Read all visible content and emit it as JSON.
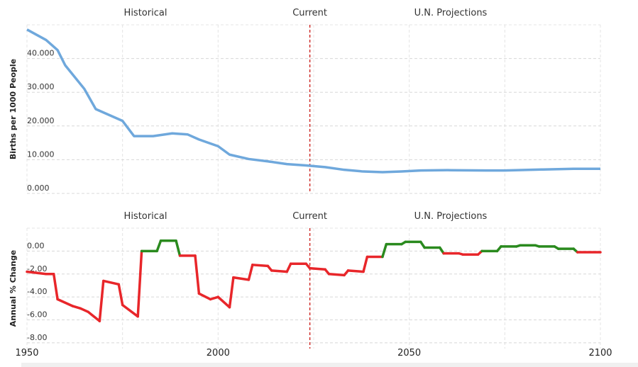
{
  "chart_data": [
    {
      "type": "line",
      "y_label": "Births per 1000 People",
      "annotations": [
        "Historical",
        "Current",
        "U.N. Projections"
      ],
      "current_x": 2024,
      "xlim": [
        1950,
        2100
      ],
      "ylim": [
        0,
        50
      ],
      "yticks": [
        {
          "value": 0,
          "label": "0.000"
        },
        {
          "value": 10,
          "label": "10.000"
        },
        {
          "value": 20,
          "label": "20.000"
        },
        {
          "value": 30,
          "label": "30.000"
        },
        {
          "value": 40,
          "label": "40.000"
        }
      ],
      "x": [
        1950,
        1955,
        1958,
        1960,
        1965,
        1968,
        1972,
        1975,
        1978,
        1983,
        1988,
        1992,
        1995,
        2000,
        2003,
        2008,
        2013,
        2018,
        2023,
        2028,
        2033,
        2038,
        2043,
        2048,
        2053,
        2060,
        2070,
        2075,
        2085,
        2093,
        2100
      ],
      "series": [
        {
          "color": "#6fa8dc",
          "values": [
            48.6,
            45.5,
            42.5,
            38,
            31,
            25,
            23,
            21.5,
            17,
            17,
            17.8,
            17.5,
            16,
            14,
            11.5,
            10.2,
            9.5,
            8.7,
            8.3,
            7.8,
            7,
            6.5,
            6.3,
            6.5,
            6.8,
            6.9,
            6.8,
            6.8,
            7.1,
            7.3,
            7.3
          ]
        }
      ]
    },
    {
      "type": "line",
      "y_label": "Annual % Change",
      "annotations": [
        "Historical",
        "Current",
        "U.N. Projections"
      ],
      "current_x": 2024,
      "xlim": [
        1950,
        2100
      ],
      "xticks": [
        1950,
        2000,
        2050,
        2100
      ],
      "xminor": [
        1975,
        2025,
        2075
      ],
      "ylim": [
        -8.5,
        2
      ],
      "yticks": [
        {
          "value": 0,
          "label": "0.00"
        },
        {
          "value": -2,
          "label": "-2.00"
        },
        {
          "value": -4,
          "label": "-4.00"
        },
        {
          "value": -6,
          "label": "-6.00"
        },
        {
          "value": -8,
          "label": "-8.00"
        }
      ],
      "positive_color": "#2a8a1e",
      "negative_color": "#e8262a",
      "x": [
        1950,
        1955,
        1957,
        1958,
        1962,
        1964,
        1966,
        1969,
        1970,
        1974,
        1975,
        1979,
        1980,
        1984,
        1985,
        1989,
        1990,
        1994,
        1995,
        1998,
        2000,
        2003,
        2004,
        2008,
        2009,
        2013,
        2014,
        2018,
        2019,
        2023,
        2024,
        2028,
        2029,
        2033,
        2034,
        2038,
        2039,
        2043,
        2044,
        2048,
        2049,
        2053,
        2054,
        2058,
        2059,
        2063,
        2064,
        2068,
        2069,
        2073,
        2074,
        2078,
        2079,
        2083,
        2084,
        2088,
        2089,
        2093,
        2094,
        2100
      ],
      "series": [
        {
          "values": [
            -1.8,
            -2.0,
            -2.0,
            -4.2,
            -4.8,
            -5.0,
            -5.3,
            -6.1,
            -2.6,
            -2.9,
            -4.7,
            -5.7,
            0.0,
            0.0,
            0.9,
            0.9,
            -0.4,
            -0.4,
            -3.7,
            -4.2,
            -4.0,
            -4.9,
            -2.3,
            -2.5,
            -1.2,
            -1.3,
            -1.7,
            -1.8,
            -1.1,
            -1.1,
            -1.5,
            -1.6,
            -2.0,
            -2.1,
            -1.7,
            -1.8,
            -0.5,
            -0.5,
            0.6,
            0.6,
            0.8,
            0.8,
            0.3,
            0.3,
            -0.2,
            -0.2,
            -0.3,
            -0.3,
            0.0,
            0.0,
            0.4,
            0.4,
            0.5,
            0.5,
            0.4,
            0.4,
            0.2,
            0.2,
            -0.1,
            -0.1
          ]
        }
      ]
    }
  ]
}
